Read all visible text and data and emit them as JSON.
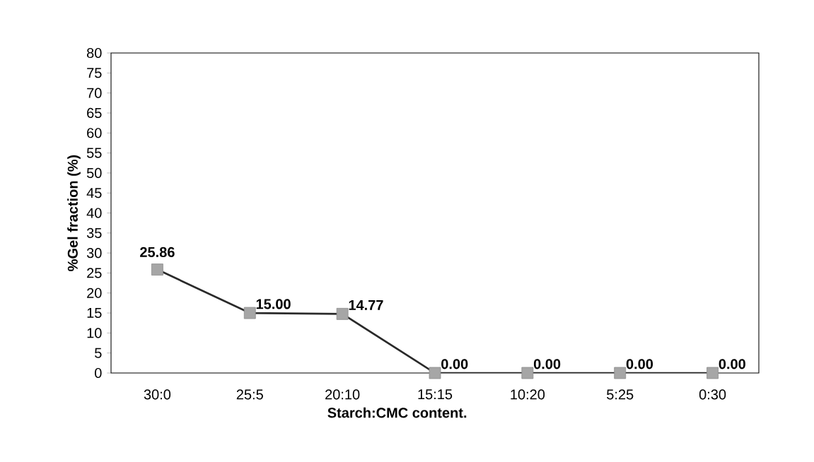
{
  "chart_data": {
    "type": "line",
    "xlabel": "Starch:CMC  content.",
    "ylabel": "%Gel fraction (%)",
    "categories": [
      "30:0",
      "25:5",
      "20:10",
      "15:15",
      "10:20",
      "5:25",
      "0:30"
    ],
    "values": [
      25.86,
      15.0,
      14.77,
      0.0,
      0.0,
      0.0,
      0.0
    ],
    "value_labels": [
      "25.86",
      "15.00",
      "14.77",
      "0.00",
      "0.00",
      "0.00",
      "0.00"
    ],
    "color": "#2a2a2a",
    "marker": "square",
    "line_style": "solid",
    "ylim": [
      0,
      80
    ],
    "yticks": [
      0,
      5,
      10,
      15,
      20,
      25,
      30,
      35,
      40,
      45,
      50,
      55,
      60,
      65,
      70,
      75,
      80
    ],
    "grid": false
  }
}
